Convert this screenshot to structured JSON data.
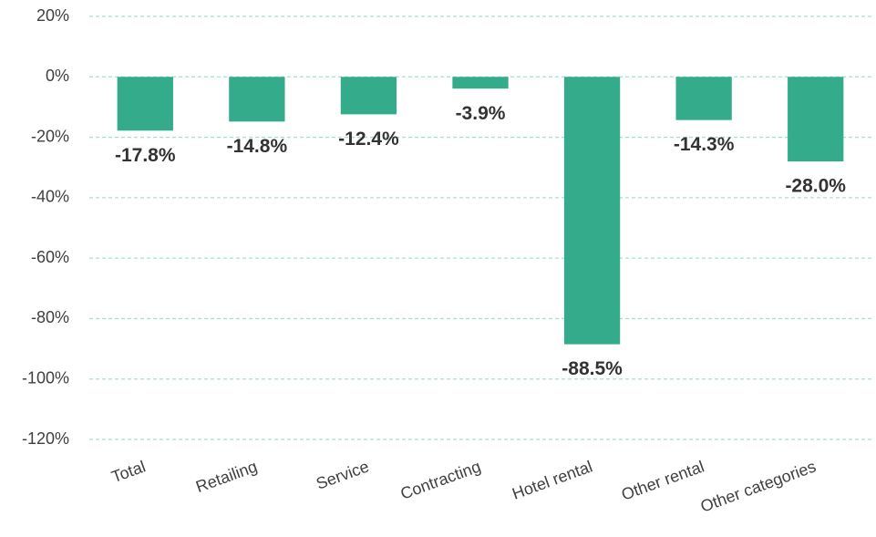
{
  "chart_data": {
    "type": "bar",
    "categories": [
      "Total",
      "Retailing",
      "Service",
      "Contracting",
      "Hotel rental",
      "Other rental",
      "Other categories"
    ],
    "values": [
      -17.8,
      -14.8,
      -12.4,
      -3.9,
      -88.5,
      -14.3,
      -28.0
    ],
    "value_labels": [
      "-17.8%",
      "-14.8%",
      "-12.4%",
      "-3.9%",
      "-88.5%",
      "-14.3%",
      "-28.0%"
    ],
    "color": "#34ab8a",
    "ylim": [
      -120,
      20
    ],
    "yticks": [
      {
        "value": 20,
        "label": "20%"
      },
      {
        "value": 0,
        "label": "0%"
      },
      {
        "value": -20,
        "label": "-20%"
      },
      {
        "value": -40,
        "label": "-40%"
      },
      {
        "value": -60,
        "label": "-60%"
      },
      {
        "value": -80,
        "label": "-80%"
      },
      {
        "value": -100,
        "label": "-100%"
      },
      {
        "value": -120,
        "label": "-120%"
      }
    ],
    "grid": true
  }
}
